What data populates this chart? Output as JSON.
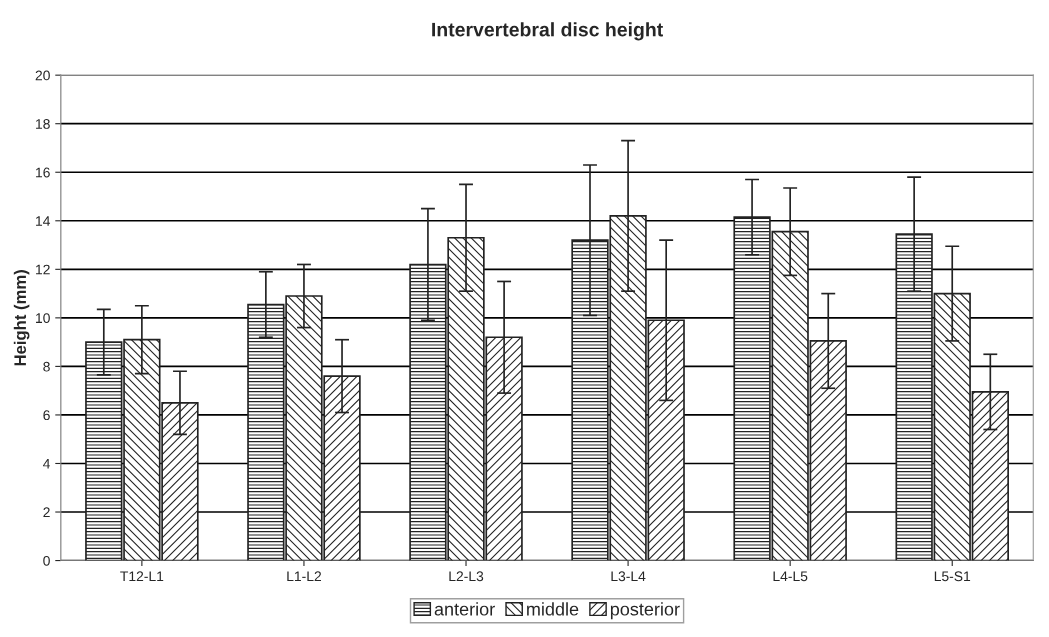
{
  "chart_data": {
    "type": "bar",
    "title": "Intervertebral disc height",
    "ylabel": "Height (mm)",
    "categories": [
      "T12-L1",
      "L1-L2",
      "L2-L3",
      "L3-L4",
      "L4-L5",
      "L5-S1"
    ],
    "series": [
      {
        "name": "anterior",
        "color": "#222222",
        "values": [
          9.0,
          10.55,
          12.2,
          13.2,
          14.15,
          13.45
        ],
        "errors": [
          1.35,
          1.35,
          2.3,
          3.1,
          1.55,
          2.35
        ]
      },
      {
        "name": "middle",
        "color": "#222222",
        "values": [
          9.1,
          10.9,
          13.3,
          14.2,
          13.55,
          11.0
        ],
        "errors": [
          1.4,
          1.3,
          2.2,
          3.1,
          1.8,
          1.95
        ]
      },
      {
        "name": "posterior",
        "color": "#222222",
        "values": [
          6.5,
          7.6,
          9.2,
          9.9,
          9.05,
          6.95
        ],
        "errors": [
          1.3,
          1.5,
          2.3,
          3.3,
          1.95,
          1.55
        ]
      }
    ],
    "ylim": [
      0,
      20
    ],
    "yticks": [
      0,
      2,
      4,
      6,
      8,
      10,
      12,
      14,
      16,
      18,
      20
    ],
    "grid": "y",
    "legend": "bottom"
  }
}
